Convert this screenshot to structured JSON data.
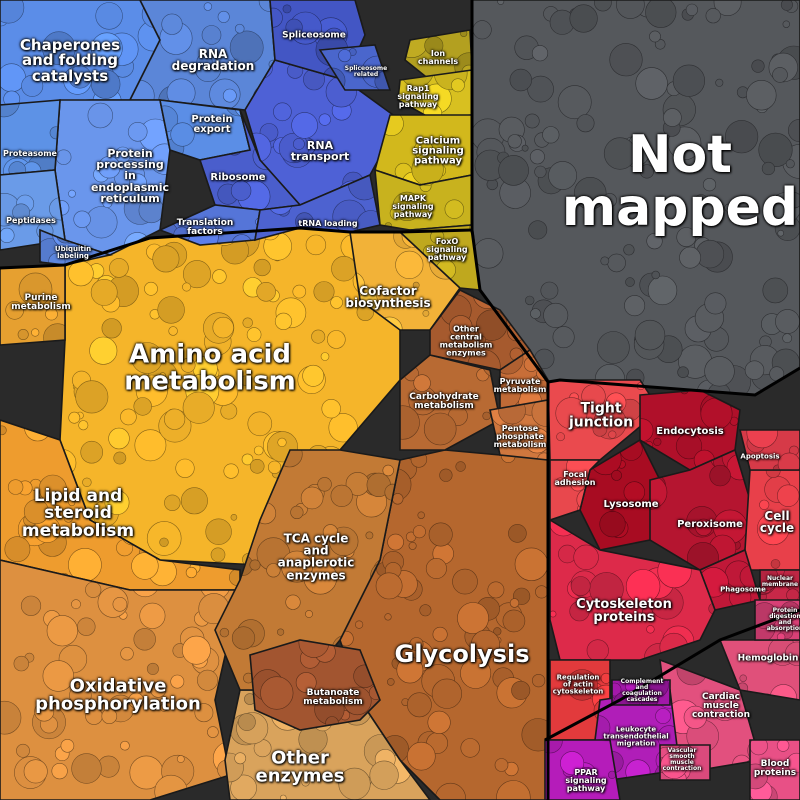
{
  "title": "",
  "groups": [
    {
      "id": "not-mapped",
      "name": "Not\nmapped",
      "color": "#55585c"
    },
    {
      "id": "amino-acid-metabolism",
      "name": "Amino acid\nmetabolism",
      "color": "#f5b52a"
    },
    {
      "id": "glycolysis",
      "name": "Glycolysis",
      "color": "#b5672e"
    },
    {
      "id": "lipid-and-steroid-metabolism",
      "name": "Lipid and\nsteroid\nmetabolism",
      "color": "#ee9c2e"
    },
    {
      "id": "oxidative-phosphorylation",
      "name": "Oxidative\nphosphorylation",
      "color": "#dd9040"
    },
    {
      "id": "other-enzymes",
      "name": "Other\nenzymes",
      "color": "#d9a35c"
    },
    {
      "id": "tca-cycle",
      "name": "TCA cycle\nand\nanaplerotic\nenzymes",
      "color": "#c27a35"
    },
    {
      "id": "cofactor-biosynthesis",
      "name": "Cofactor\nbiosynthesis",
      "color": "#f2b238"
    },
    {
      "id": "purine-metabolism",
      "name": "Purine\nmetabolism",
      "color": "#e6a030"
    },
    {
      "id": "carbohydrate-metabolism",
      "name": "Carbohydrate\nmetabolism",
      "color": "#b86a33"
    },
    {
      "id": "other-central-metabolism",
      "name": "Other\ncentral\nmetabolism\nenzymes",
      "color": "#a65a2e"
    },
    {
      "id": "pyruvate-metabolism",
      "name": "Pyruvate\nmetabolism",
      "color": "#c86e38"
    },
    {
      "id": "pentose-phosphate",
      "name": "Pentose\nphosphate\nmetabolism",
      "color": "#d0773e"
    },
    {
      "id": "butanoate-metabolism",
      "name": "Butanoate\nmetabolism",
      "color": "#a25530"
    },
    {
      "id": "chaperones",
      "name": "Chaperones\nand folding\ncatalysts",
      "color": "#5b8de8"
    },
    {
      "id": "rna-degradation",
      "name": "RNA\ndegradation",
      "color": "#5b86d8"
    },
    {
      "id": "protein-processing-er",
      "name": "Protein\nprocessing\nin\nendoplasmic\nreticulum",
      "color": "#6a96ec"
    },
    {
      "id": "protein-export",
      "name": "Protein\nexport",
      "color": "#5b8ee6"
    },
    {
      "id": "rna-transport",
      "name": "RNA\ntransport",
      "color": "#4e61d6"
    },
    {
      "id": "ribosome",
      "name": "Ribosome",
      "color": "#4a5ecc"
    },
    {
      "id": "translation-factors",
      "name": "Translation\nfactors",
      "color": "#5575d8"
    },
    {
      "id": "spliceosome",
      "name": "Spliceosome",
      "color": "#4356c4"
    },
    {
      "id": "proteasome",
      "name": "Proteasome",
      "color": "#5d92e6"
    },
    {
      "id": "peptidases",
      "name": "Peptidases",
      "color": "#6a9be8"
    },
    {
      "id": "ubiquitin-labeling",
      "name": "Ubiquitin\nlabeling",
      "color": "#5a82d8"
    },
    {
      "id": "trna-loading",
      "name": "tRNA loading",
      "color": "#4d62d0"
    },
    {
      "id": "ion-channels",
      "name": "Ion\nchannels",
      "color": "#b3a020"
    },
    {
      "id": "rap1-signaling",
      "name": "Rap1\nsignaling\npathway",
      "color": "#d8c020"
    },
    {
      "id": "calcium-signaling",
      "name": "Calcium\nsignaling\npathway",
      "color": "#d2b81c"
    },
    {
      "id": "mapk-signaling",
      "name": "MAPK\nsignaling\npathway",
      "color": "#c8b21e"
    },
    {
      "id": "foxo-signaling",
      "name": "FoxO\nsignaling\npathway",
      "color": "#bfa81e"
    },
    {
      "id": "tight-junction",
      "name": "Tight\njunction",
      "color": "#ea4a4e"
    },
    {
      "id": "endocytosis",
      "name": "Endocytosis",
      "color": "#b0102a"
    },
    {
      "id": "lysosome",
      "name": "Lysosome",
      "color": "#a80c22"
    },
    {
      "id": "peroxisome",
      "name": "Peroxisome",
      "color": "#b51530"
    },
    {
      "id": "focal-adhesion",
      "name": "Focal\nadhesion",
      "color": "#e8484d"
    },
    {
      "id": "cell-cycle",
      "name": "Cell\ncycle",
      "color": "#e8404a"
    },
    {
      "id": "apoptosis",
      "name": "Apoptosis",
      "color": "#d63a48"
    },
    {
      "id": "phagosome",
      "name": "Phagosome",
      "color": "#c01838"
    },
    {
      "id": "cytoskeleton-proteins",
      "name": "Cytoskeleton\nproteins",
      "color": "#dd2a4a"
    },
    {
      "id": "regulation-actin",
      "name": "Regulation\nof actin\ncytoskeleton",
      "color": "#e23a3c"
    },
    {
      "id": "hemoglobin",
      "name": "Hemoglobin",
      "color": "#e0507a"
    },
    {
      "id": "cardiac-muscle",
      "name": "Cardiac\nmuscle\ncontraction",
      "color": "#e2507e"
    },
    {
      "id": "leukocyte-migration",
      "name": "Leukocyte\ntransendothelial\nmigration",
      "color": "#b01eb8"
    },
    {
      "id": "ppar-signaling",
      "name": "PPAR\nsignaling\npathway",
      "color": "#b51cba"
    },
    {
      "id": "blood-proteins",
      "name": "Blood\nproteins",
      "color": "#e85086"
    },
    {
      "id": "nuclear-membrane",
      "name": "Nuclear\nmembrane",
      "color": "#c82848"
    },
    {
      "id": "ribosome-related",
      "name": "Spliceosome\nrelated",
      "color": "#4a66cc"
    },
    {
      "id": "protein-digestion",
      "name": "Protein\ndigestion\nand\nabsorption",
      "color": "#d84076"
    },
    {
      "id": "complement-coagulation",
      "name": "Complement\nand\ncoagulation\ncascades",
      "color": "#a118a8"
    },
    {
      "id": "vascular-smooth-muscle",
      "name": "Vascular\nsmooth\nmuscle\ncontraction",
      "color": "#da4a7c"
    }
  ]
}
